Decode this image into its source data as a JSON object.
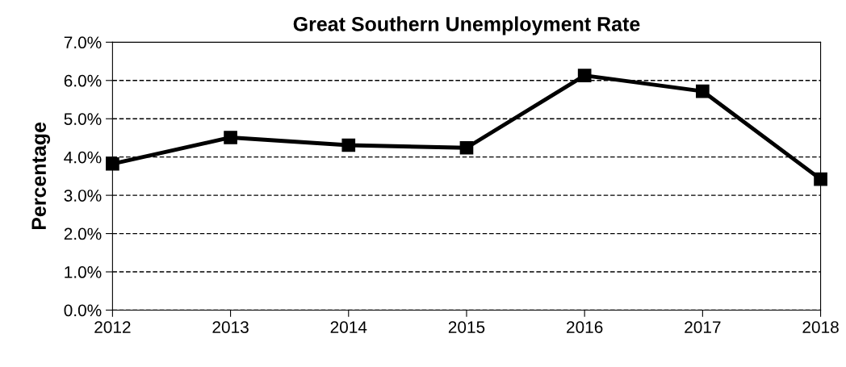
{
  "chart_data": {
    "type": "line",
    "title": "Great Southern Unemployment Rate",
    "ylabel": "Percentage",
    "x": [
      2012,
      2013,
      2014,
      2015,
      2016,
      2017,
      2018
    ],
    "series": [
      {
        "color": "#000000",
        "values": [
          3.82,
          4.51,
          4.31,
          4.24,
          6.13,
          5.72,
          3.42
        ]
      }
    ],
    "xlim": [
      2012,
      2018
    ],
    "xticks": [
      2012,
      2013,
      2014,
      2015,
      2016,
      2017,
      2018
    ],
    "ylim": [
      0,
      7
    ],
    "yticks": [
      {
        "value": 0,
        "label": "0.0%"
      },
      {
        "value": 1,
        "label": "1.0%"
      },
      {
        "value": 2,
        "label": "2.0%"
      },
      {
        "value": 3,
        "label": "3.0%"
      },
      {
        "value": 4,
        "label": "4.0%"
      },
      {
        "value": 5,
        "label": "5.0%"
      },
      {
        "value": 6,
        "label": "6.0%"
      },
      {
        "value": 7,
        "label": "7.0%"
      }
    ],
    "grid": "y",
    "marker": "square",
    "line_style": "solid"
  }
}
